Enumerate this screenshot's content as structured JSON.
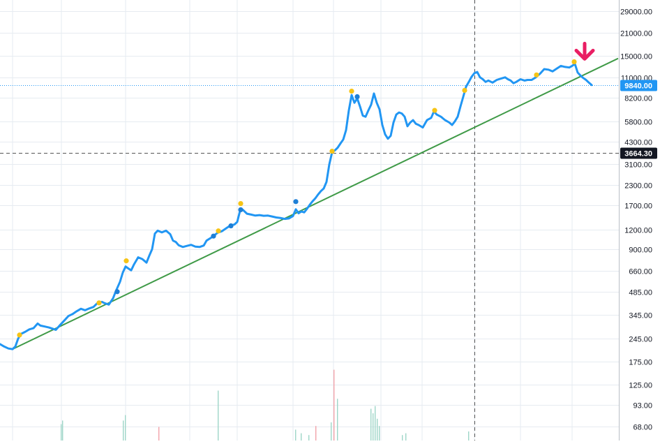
{
  "colors": {
    "background": "#ffffff",
    "grid": "#e6ebf1",
    "axis_border": "#b9bec6",
    "axis_text": "#131722",
    "price_line": "#2196f3",
    "trend_line": "#3f9a47",
    "marker_yellow": "#f6c416",
    "marker_blue": "#1e7fd6",
    "arrow": "#e91e63",
    "crosshair": "#555555",
    "current_price_tag": "#2196f3",
    "crosshair_tag": "#131722",
    "volume_up": "#9ed6c8",
    "volume_down": "#f2a3aa"
  },
  "chart_data": {
    "type": "line",
    "y_scale": "log",
    "ylim": [
      58,
      36000
    ],
    "x_range": [
      0,
      946
    ],
    "axis": {
      "y_tick_labels": [
        "29000.00",
        "21000.00",
        "15000.00",
        "11000.00",
        "8200.00",
        "5800.00",
        "4300.00",
        "3100.00",
        "2300.00",
        "1700.00",
        "1200.00",
        "900.00",
        "660.00",
        "485.00",
        "345.00",
        "245.00",
        "175.00",
        "125.00",
        "93.00",
        "68.00"
      ],
      "current_price_label": "9840.00",
      "crosshair_price_label": "3664.30"
    },
    "series": [
      {
        "role": "price",
        "points": [
          [
            0,
            226
          ],
          [
            6,
            218
          ],
          [
            12,
            212
          ],
          [
            18,
            210
          ],
          [
            22,
            218
          ],
          [
            26,
            245
          ],
          [
            30,
            262
          ],
          [
            36,
            270
          ],
          [
            42,
            280
          ],
          [
            48,
            285
          ],
          [
            54,
            305
          ],
          [
            58,
            296
          ],
          [
            64,
            292
          ],
          [
            70,
            288
          ],
          [
            76,
            282
          ],
          [
            80,
            278
          ],
          [
            86,
            298
          ],
          [
            92,
            318
          ],
          [
            98,
            340
          ],
          [
            104,
            350
          ],
          [
            110,
            365
          ],
          [
            116,
            378
          ],
          [
            122,
            370
          ],
          [
            128,
            380
          ],
          [
            134,
            388
          ],
          [
            140,
            412
          ],
          [
            146,
            418
          ],
          [
            150,
            410
          ],
          [
            156,
            402
          ],
          [
            162,
            440
          ],
          [
            166,
            488
          ],
          [
            172,
            560
          ],
          [
            176,
            640
          ],
          [
            180,
            700
          ],
          [
            184,
            680
          ],
          [
            188,
            662
          ],
          [
            192,
            720
          ],
          [
            198,
            800
          ],
          [
            204,
            780
          ],
          [
            210,
            740
          ],
          [
            214,
            820
          ],
          [
            218,
            900
          ],
          [
            222,
            1130
          ],
          [
            226,
            1180
          ],
          [
            232,
            1150
          ],
          [
            238,
            1180
          ],
          [
            244,
            1120
          ],
          [
            248,
            1020
          ],
          [
            252,
            1000
          ],
          [
            256,
            955
          ],
          [
            262,
            930
          ],
          [
            268,
            945
          ],
          [
            274,
            960
          ],
          [
            280,
            935
          ],
          [
            286,
            930
          ],
          [
            292,
            950
          ],
          [
            296,
            1020
          ],
          [
            302,
            1060
          ],
          [
            308,
            1110
          ],
          [
            312,
            1145
          ],
          [
            318,
            1170
          ],
          [
            324,
            1220
          ],
          [
            330,
            1270
          ],
          [
            336,
            1290
          ],
          [
            340,
            1340
          ],
          [
            344,
            1570
          ],
          [
            348,
            1600
          ],
          [
            354,
            1510
          ],
          [
            360,
            1490
          ],
          [
            366,
            1470
          ],
          [
            372,
            1480
          ],
          [
            378,
            1465
          ],
          [
            384,
            1470
          ],
          [
            390,
            1450
          ],
          [
            396,
            1430
          ],
          [
            402,
            1420
          ],
          [
            408,
            1400
          ],
          [
            414,
            1410
          ],
          [
            420,
            1460
          ],
          [
            424,
            1610
          ],
          [
            428,
            1520
          ],
          [
            432,
            1560
          ],
          [
            436,
            1540
          ],
          [
            440,
            1620
          ],
          [
            444,
            1720
          ],
          [
            448,
            1810
          ],
          [
            452,
            1890
          ],
          [
            456,
            2000
          ],
          [
            460,
            2100
          ],
          [
            464,
            2180
          ],
          [
            468,
            2400
          ],
          [
            472,
            3100
          ],
          [
            476,
            3700
          ],
          [
            480,
            3800
          ],
          [
            484,
            3950
          ],
          [
            488,
            4200
          ],
          [
            492,
            4450
          ],
          [
            496,
            5100
          ],
          [
            500,
            6800
          ],
          [
            504,
            8500
          ],
          [
            508,
            7600
          ],
          [
            512,
            8100
          ],
          [
            516,
            7200
          ],
          [
            520,
            6300
          ],
          [
            524,
            6200
          ],
          [
            528,
            6800
          ],
          [
            532,
            7400
          ],
          [
            536,
            8700
          ],
          [
            540,
            7600
          ],
          [
            544,
            6900
          ],
          [
            548,
            5500
          ],
          [
            552,
            4800
          ],
          [
            556,
            4500
          ],
          [
            560,
            4700
          ],
          [
            564,
            5700
          ],
          [
            568,
            6400
          ],
          [
            572,
            6600
          ],
          [
            576,
            6500
          ],
          [
            580,
            6200
          ],
          [
            584,
            5400
          ],
          [
            588,
            5700
          ],
          [
            592,
            5900
          ],
          [
            596,
            5600
          ],
          [
            600,
            5500
          ],
          [
            606,
            5300
          ],
          [
            612,
            5900
          ],
          [
            618,
            6100
          ],
          [
            622,
            6700
          ],
          [
            626,
            6400
          ],
          [
            632,
            6200
          ],
          [
            638,
            5900
          ],
          [
            644,
            5700
          ],
          [
            648,
            5500
          ],
          [
            652,
            5800
          ],
          [
            656,
            6200
          ],
          [
            660,
            7200
          ],
          [
            664,
            8300
          ],
          [
            668,
            9600
          ],
          [
            672,
            10300
          ],
          [
            676,
            11100
          ],
          [
            680,
            11700
          ],
          [
            684,
            11900
          ],
          [
            688,
            11000
          ],
          [
            692,
            10700
          ],
          [
            696,
            10300
          ],
          [
            700,
            10500
          ],
          [
            706,
            10200
          ],
          [
            712,
            10600
          ],
          [
            718,
            10800
          ],
          [
            724,
            11000
          ],
          [
            728,
            10700
          ],
          [
            732,
            10500
          ],
          [
            736,
            10100
          ],
          [
            740,
            10300
          ],
          [
            746,
            10700
          ],
          [
            752,
            10500
          ],
          [
            756,
            10600
          ],
          [
            762,
            10600
          ],
          [
            768,
            11000
          ],
          [
            774,
            11600
          ],
          [
            780,
            12400
          ],
          [
            786,
            12300
          ],
          [
            792,
            12000
          ],
          [
            798,
            12500
          ],
          [
            804,
            13000
          ],
          [
            810,
            12800
          ],
          [
            816,
            12700
          ],
          [
            820,
            13000
          ],
          [
            824,
            13400
          ],
          [
            828,
            11800
          ],
          [
            832,
            11300
          ],
          [
            836,
            10900
          ],
          [
            840,
            10600
          ],
          [
            844,
            10200
          ],
          [
            848,
            9840
          ]
        ]
      },
      {
        "role": "trend_line",
        "points": [
          [
            18,
            210
          ],
          [
            886,
            14500
          ]
        ]
      }
    ],
    "markers": [
      {
        "color": "yellow",
        "x": 28,
        "y": 258
      },
      {
        "color": "yellow",
        "x": 142,
        "y": 412
      },
      {
        "color": "blue",
        "x": 168,
        "y": 485
      },
      {
        "color": "yellow",
        "x": 181,
        "y": 760
      },
      {
        "color": "blue",
        "x": 306,
        "y": 1090
      },
      {
        "color": "yellow",
        "x": 313,
        "y": 1175
      },
      {
        "color": "blue",
        "x": 331,
        "y": 1265
      },
      {
        "color": "yellow",
        "x": 345,
        "y": 1750
      },
      {
        "color": "blue",
        "x": 345,
        "y": 1600
      },
      {
        "color": "blue",
        "x": 424,
        "y": 1800
      },
      {
        "color": "yellow",
        "x": 476,
        "y": 3750
      },
      {
        "color": "yellow",
        "x": 504,
        "y": 9000
      },
      {
        "color": "blue",
        "x": 512,
        "y": 8300
      },
      {
        "color": "yellow",
        "x": 623,
        "y": 6800
      },
      {
        "color": "yellow",
        "x": 666,
        "y": 9100
      },
      {
        "color": "yellow",
        "x": 769,
        "y": 11400
      },
      {
        "color": "yellow",
        "x": 823,
        "y": 13800
      }
    ],
    "volume_bars": [
      {
        "x": 87,
        "rel": 0.18,
        "dir": "up"
      },
      {
        "x": 89,
        "rel": 0.22,
        "dir": "up"
      },
      {
        "x": 176,
        "rel": 0.22,
        "dir": "up"
      },
      {
        "x": 179,
        "rel": 0.28,
        "dir": "up"
      },
      {
        "x": 227,
        "rel": 0.15,
        "dir": "down"
      },
      {
        "x": 312,
        "rel": 0.55,
        "dir": "up"
      },
      {
        "x": 423,
        "rel": 0.12,
        "dir": "up"
      },
      {
        "x": 431,
        "rel": 0.08,
        "dir": "up"
      },
      {
        "x": 442,
        "rel": 0.06,
        "dir": "up"
      },
      {
        "x": 452,
        "rel": 0.16,
        "dir": "down"
      },
      {
        "x": 474,
        "rel": 0.2,
        "dir": "up"
      },
      {
        "x": 478,
        "rel": 0.78,
        "dir": "down"
      },
      {
        "x": 483,
        "rel": 0.46,
        "dir": "up"
      },
      {
        "x": 531,
        "rel": 0.35,
        "dir": "up"
      },
      {
        "x": 534,
        "rel": 0.3,
        "dir": "up"
      },
      {
        "x": 537,
        "rel": 0.38,
        "dir": "up"
      },
      {
        "x": 540,
        "rel": 0.24,
        "dir": "up"
      },
      {
        "x": 543,
        "rel": 0.16,
        "dir": "up"
      },
      {
        "x": 576,
        "rel": 0.06,
        "dir": "up"
      },
      {
        "x": 581,
        "rel": 0.08,
        "dir": "up"
      },
      {
        "x": 671,
        "rel": 0.1,
        "dir": "up"
      }
    ],
    "current_price": 9840,
    "crosshair": {
      "x": 680,
      "price": 3664.3
    },
    "annotation": {
      "type": "arrow-down",
      "x": 838,
      "price": 14400
    }
  }
}
